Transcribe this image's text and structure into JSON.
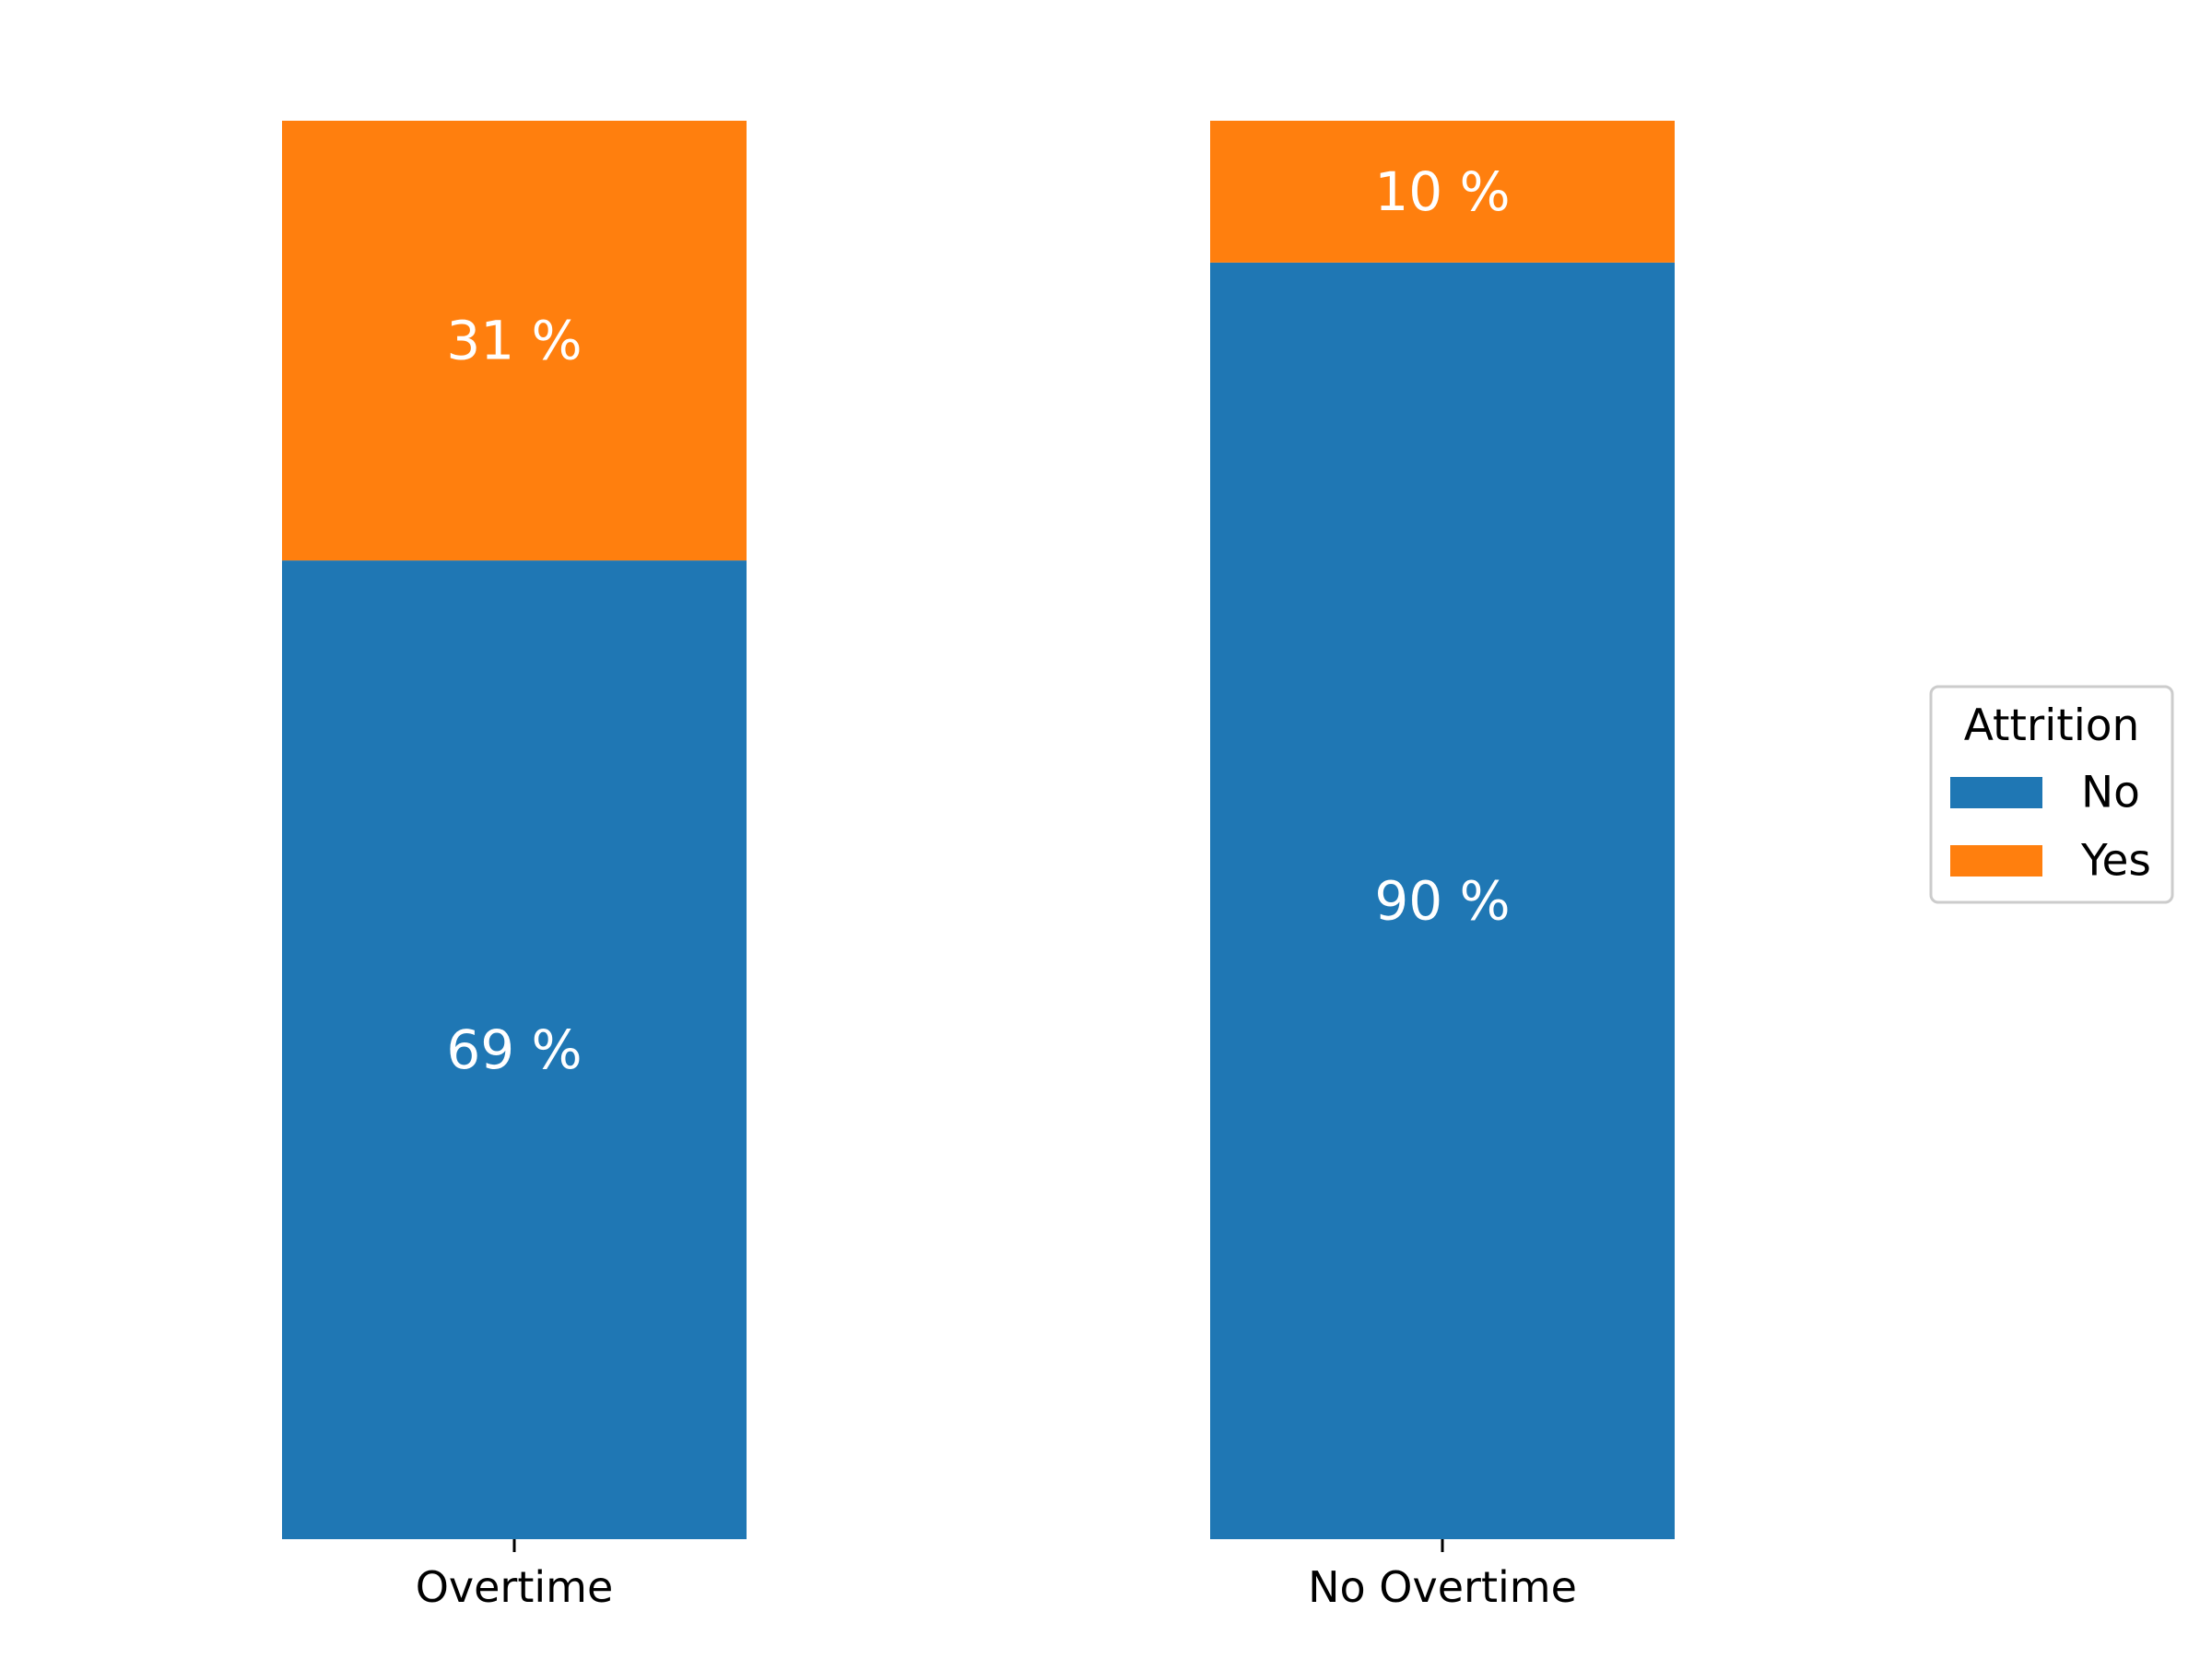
{
  "chart_data": {
    "type": "bar",
    "stacked": true,
    "normalized": true,
    "title": "",
    "xlabel": "",
    "ylabel": "",
    "ylim": [
      0,
      1
    ],
    "grid": false,
    "categories": [
      "Overtime",
      "No Overtime"
    ],
    "series": [
      {
        "name": "No",
        "values": [
          0.69,
          0.9
        ],
        "labels": [
          "69 %",
          "90 %"
        ],
        "color": "#1f77b4"
      },
      {
        "name": "Yes",
        "values": [
          0.31,
          0.1
        ],
        "labels": [
          "31 %",
          "10 %"
        ],
        "color": "#ff7f0e"
      }
    ],
    "legend": {
      "title": "Attrition",
      "placement": "center-right"
    }
  }
}
